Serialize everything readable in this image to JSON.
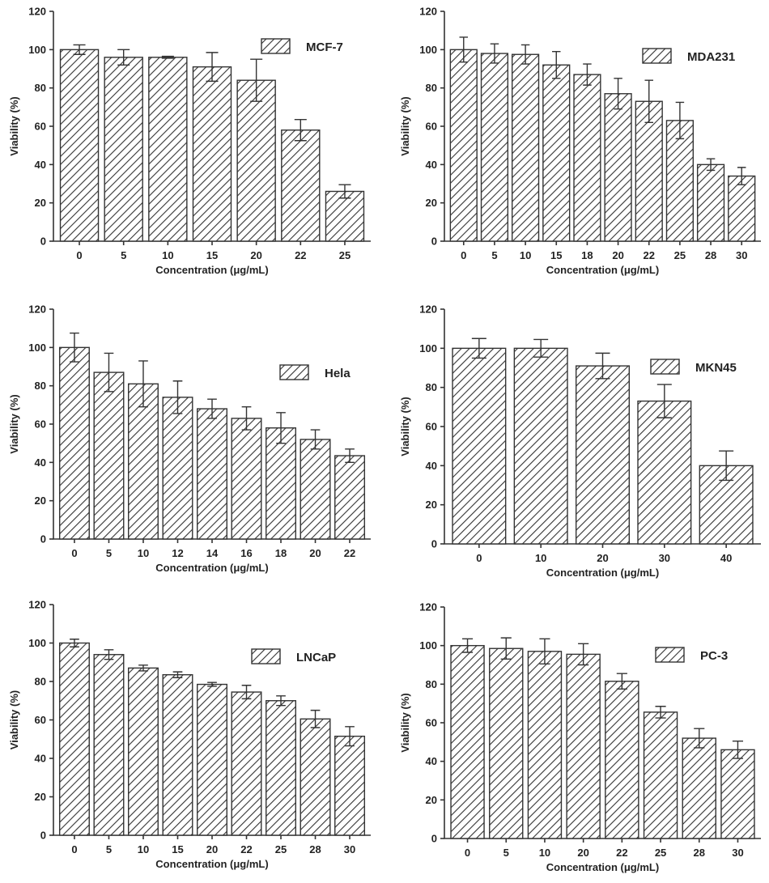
{
  "chart_data": [
    {
      "type": "bar",
      "legend": "MCF-7",
      "xlabel": "Concentration (μg/mL)",
      "ylabel": "Viability (%)",
      "ylim": [
        0,
        120
      ],
      "yticks": [
        "0",
        "20",
        "40",
        "60",
        "80",
        "100",
        "120"
      ],
      "categories": [
        "0",
        "5",
        "10",
        "15",
        "20",
        "22",
        "25"
      ],
      "values": [
        100,
        96,
        96,
        91,
        84,
        58,
        26
      ],
      "errors": [
        2.5,
        4,
        0.5,
        7.5,
        11,
        5.5,
        3.5
      ]
    },
    {
      "type": "bar",
      "legend": "MDA231",
      "xlabel": "Concentration (μg/mL)",
      "ylabel": "Viability (%)",
      "ylim": [
        0,
        120
      ],
      "yticks": [
        "0",
        "20",
        "40",
        "60",
        "80",
        "100",
        "120"
      ],
      "categories": [
        "0",
        "5",
        "10",
        "15",
        "18",
        "20",
        "22",
        "25",
        "28",
        "30"
      ],
      "values": [
        100,
        98,
        97.5,
        92,
        87,
        77,
        73,
        63,
        40,
        34
      ],
      "errors": [
        6.5,
        5,
        5,
        7,
        5.5,
        8,
        11,
        9.5,
        3,
        4.5
      ]
    },
    {
      "type": "bar",
      "legend": "Hela",
      "xlabel": "Concentration (μg/mL)",
      "ylabel": "Viability (%)",
      "ylim": [
        0,
        120
      ],
      "yticks": [
        "0",
        "20",
        "40",
        "60",
        "80",
        "100",
        "120"
      ],
      "categories": [
        "0",
        "5",
        "10",
        "12",
        "14",
        "16",
        "18",
        "20",
        "22"
      ],
      "values": [
        100,
        87,
        81,
        74,
        68,
        63,
        58,
        52,
        43.5
      ],
      "errors": [
        7.5,
        10,
        12,
        8.5,
        5,
        6,
        8,
        5,
        3.5
      ]
    },
    {
      "type": "bar",
      "legend": "MKN45",
      "xlabel": "Concentration (μg/mL)",
      "ylabel": "Viability (%)",
      "ylim": [
        0,
        120
      ],
      "yticks": [
        "0",
        "20",
        "40",
        "60",
        "80",
        "100",
        "120"
      ],
      "categories": [
        "0",
        "10",
        "20",
        "30",
        "40"
      ],
      "values": [
        100,
        100,
        91,
        73,
        40
      ],
      "errors": [
        5,
        4.5,
        6.5,
        8.5,
        7.5
      ]
    },
    {
      "type": "bar",
      "legend": "LNCaP",
      "xlabel": "Concentration (μg/mL)",
      "ylabel": "Viability (%)",
      "ylim": [
        0,
        120
      ],
      "yticks": [
        "0",
        "20",
        "40",
        "60",
        "80",
        "100",
        "120"
      ],
      "categories": [
        "0",
        "5",
        "10",
        "15",
        "20",
        "22",
        "25",
        "28",
        "30"
      ],
      "values": [
        100,
        94,
        87,
        83.5,
        78.5,
        74.5,
        70,
        60.5,
        51.5
      ],
      "errors": [
        2,
        2.5,
        1.5,
        1.5,
        1,
        3.5,
        2.5,
        4.5,
        5
      ]
    },
    {
      "type": "bar",
      "legend": "PC-3",
      "xlabel": "Concentration (μg/mL)",
      "ylabel": "Viability (%)",
      "ylim": [
        0,
        120
      ],
      "yticks": [
        "0",
        "20",
        "40",
        "60",
        "80",
        "100",
        "120"
      ],
      "categories": [
        "0",
        "5",
        "10",
        "20",
        "22",
        "25",
        "28",
        "30"
      ],
      "values": [
        100,
        98.5,
        97,
        95.5,
        81.5,
        65.5,
        52,
        46
      ],
      "errors": [
        3.5,
        5.5,
        6.5,
        5.5,
        4,
        3,
        5,
        4.5
      ]
    }
  ]
}
